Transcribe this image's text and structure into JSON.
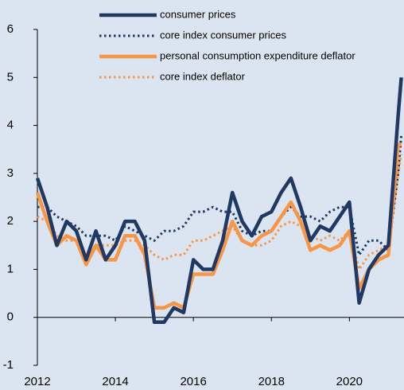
{
  "chart_data": {
    "type": "line",
    "x": [
      2012.0,
      2012.25,
      2012.5,
      2012.75,
      2013.0,
      2013.25,
      2013.5,
      2013.75,
      2014.0,
      2014.25,
      2014.5,
      2014.75,
      2015.0,
      2015.25,
      2015.5,
      2015.75,
      2016.0,
      2016.25,
      2016.5,
      2016.75,
      2017.0,
      2017.25,
      2017.5,
      2017.75,
      2018.0,
      2018.25,
      2018.5,
      2018.75,
      2019.0,
      2019.25,
      2019.5,
      2019.75,
      2020.0,
      2020.25,
      2020.5,
      2020.75,
      2021.0,
      2021.25,
      2021.33
    ],
    "series": [
      {
        "name": "consumer prices",
        "color": "#1f3864",
        "style": "solid",
        "values": [
          2.9,
          2.3,
          1.5,
          2.0,
          1.8,
          1.2,
          1.8,
          1.2,
          1.5,
          2.0,
          2.0,
          1.6,
          -0.1,
          -0.1,
          0.2,
          0.1,
          1.2,
          1.0,
          1.0,
          1.6,
          2.6,
          2.0,
          1.7,
          2.1,
          2.2,
          2.6,
          2.9,
          2.3,
          1.6,
          1.9,
          1.8,
          2.1,
          2.4,
          0.3,
          1.0,
          1.3,
          1.5,
          4.2,
          5.0
        ]
      },
      {
        "name": "core index consumer prices",
        "color": "#1f3864",
        "style": "dotted",
        "values": [
          2.3,
          2.3,
          2.1,
          2.0,
          1.9,
          1.7,
          1.7,
          1.7,
          1.6,
          1.9,
          1.8,
          1.7,
          1.6,
          1.8,
          1.8,
          1.9,
          2.2,
          2.2,
          2.3,
          2.2,
          2.2,
          1.8,
          1.7,
          1.8,
          1.8,
          2.1,
          2.3,
          2.1,
          2.1,
          2.0,
          2.2,
          2.3,
          2.3,
          1.3,
          1.6,
          1.6,
          1.4,
          3.0,
          3.8
        ]
      },
      {
        "name": "personal consumption expenditure deflator",
        "color": "#f79646",
        "style": "solid",
        "values": [
          2.6,
          2.0,
          1.5,
          1.7,
          1.6,
          1.1,
          1.5,
          1.2,
          1.2,
          1.7,
          1.7,
          1.3,
          0.2,
          0.2,
          0.3,
          0.2,
          0.9,
          0.9,
          0.9,
          1.4,
          2.0,
          1.6,
          1.5,
          1.7,
          1.8,
          2.1,
          2.4,
          2.0,
          1.4,
          1.5,
          1.4,
          1.5,
          1.8,
          0.6,
          1.0,
          1.2,
          1.3,
          3.6,
          3.6
        ]
      },
      {
        "name": "core index deflator",
        "color": "#f79646",
        "style": "dotted",
        "values": [
          2.1,
          2.0,
          1.7,
          1.6,
          1.6,
          1.3,
          1.5,
          1.5,
          1.5,
          1.6,
          1.6,
          1.5,
          1.3,
          1.2,
          1.3,
          1.3,
          1.6,
          1.6,
          1.7,
          1.8,
          1.9,
          1.6,
          1.5,
          1.5,
          1.6,
          1.9,
          2.0,
          1.9,
          1.7,
          1.6,
          1.7,
          1.6,
          1.8,
          1.0,
          1.3,
          1.4,
          1.5,
          3.0,
          3.4
        ]
      }
    ],
    "xlim": [
      2012,
      2021.4
    ],
    "xticks": [
      2012,
      2014,
      2016,
      2018,
      2020
    ],
    "ylim": [
      -1,
      6
    ],
    "yticks": [
      -1,
      0,
      1,
      2,
      3,
      4,
      5,
      6
    ],
    "legend": "top",
    "background": "#dbe5f1"
  }
}
